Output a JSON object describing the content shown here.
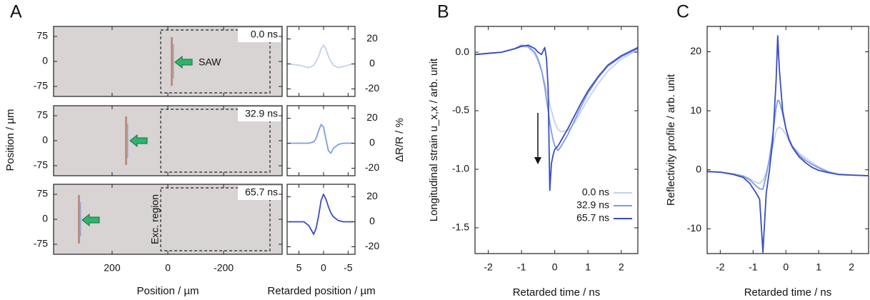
{
  "chart_data": [
    {
      "type": "image",
      "panel_label": "A",
      "xlabel": "Position / µm",
      "ylabel": "Position / µm",
      "xlim": [
        410,
        -410
      ],
      "ylim": [
        -105,
        105
      ],
      "xticks": [
        200,
        0,
        -200
      ],
      "yticks": [
        75,
        0,
        -75
      ],
      "times": [
        "0.0 ns",
        "32.9 ns",
        "65.7 ns"
      ],
      "annotations": [
        "SAW",
        "Exc. region"
      ]
    },
    {
      "type": "line",
      "xlabel": "Retarded position / µm",
      "ylabel": "ΔR/R / %",
      "xlim": [
        7.4,
        -6.4
      ],
      "ylim": [
        -26,
        30
      ],
      "xticks": [
        5,
        0,
        -5
      ],
      "yticks": [
        20,
        0,
        -20
      ],
      "x": [
        7,
        6,
        5,
        4,
        3,
        2,
        1.5,
        1,
        0.5,
        0,
        -0.5,
        -1,
        -1.5,
        -2,
        -3,
        -4,
        -5,
        -6
      ],
      "series": [
        {
          "color": "#c3d0ee",
          "values": [
            0,
            -0.5,
            -1,
            -2,
            -3,
            -1,
            2,
            6,
            12,
            15,
            12,
            6,
            2,
            -1,
            -3,
            -2,
            -1,
            0
          ]
        },
        {
          "color": "#7f9ce2",
          "values": [
            0,
            0,
            0,
            0,
            0,
            1,
            4,
            10,
            15,
            13,
            3,
            -6,
            -8,
            -4,
            -1,
            0,
            0,
            0
          ]
        },
        {
          "color": "#3a4cc0",
          "values": [
            0,
            0,
            0,
            0,
            -3,
            -10,
            -5,
            5,
            17,
            22,
            18,
            12,
            7,
            4,
            1,
            0,
            0,
            0
          ]
        }
      ]
    },
    {
      "type": "line",
      "panel_label": "B",
      "xlabel": "Retarded time / ns",
      "ylabel": "Longitudinal strain u_x,x / arb. unit",
      "xlim": [
        -2.4,
        2.5
      ],
      "ylim": [
        -1.72,
        0.22
      ],
      "xticks": [
        -2,
        -1,
        0,
        1,
        2
      ],
      "yticks": [
        {
          "value": 0,
          "label": "0.0"
        },
        -0.5,
        {
          "value": -1,
          "label": "-1.0"
        },
        -1.5
      ],
      "legend": "lower right",
      "x": [
        -2.4,
        -2.0,
        -1.6,
        -1.2,
        -1.0,
        -0.8,
        -0.6,
        -0.5,
        -0.4,
        -0.3,
        -0.25,
        -0.2,
        -0.15,
        -0.1,
        -0.05,
        0,
        0.1,
        0.2,
        0.4,
        0.6,
        0.8,
        1.0,
        1.3,
        1.6,
        2.0,
        2.5
      ],
      "series": [
        {
          "name": "0.0 ns",
          "color": "#c3d0ee",
          "values": [
            -0.02,
            -0.01,
            0.0,
            0.03,
            0.05,
            0.04,
            -0.02,
            -0.08,
            -0.16,
            -0.26,
            -0.32,
            -0.38,
            -0.44,
            -0.5,
            -0.55,
            -0.6,
            -0.66,
            -0.68,
            -0.67,
            -0.6,
            -0.5,
            -0.4,
            -0.27,
            -0.16,
            -0.06,
            0.02
          ]
        },
        {
          "name": "32.9 ns",
          "color": "#7f9ce2",
          "values": [
            -0.02,
            -0.01,
            0.0,
            0.03,
            0.06,
            0.05,
            0.0,
            -0.06,
            -0.15,
            -0.3,
            -0.4,
            -0.5,
            -0.6,
            -0.68,
            -0.75,
            -0.8,
            -0.84,
            -0.8,
            -0.7,
            -0.58,
            -0.46,
            -0.35,
            -0.22,
            -0.12,
            -0.04,
            0.03
          ]
        },
        {
          "name": "65.7 ns",
          "color": "#3a4cc0",
          "values": [
            -0.02,
            -0.01,
            0.0,
            0.03,
            0.05,
            0.06,
            0.03,
            0.0,
            -0.02,
            0.04,
            -0.05,
            -0.3,
            -1.18,
            -0.95,
            -0.88,
            -0.83,
            -0.8,
            -0.75,
            -0.65,
            -0.54,
            -0.43,
            -0.33,
            -0.21,
            -0.11,
            -0.03,
            0.04
          ]
        }
      ]
    },
    {
      "type": "line",
      "panel_label": "C",
      "xlabel": "Retarded time / ns",
      "ylabel": "Reflectivity profile / arb. unit",
      "xlim": [
        -2.4,
        2.52
      ],
      "ylim": [
        -14.2,
        24.3
      ],
      "xticks": [
        -2,
        -1,
        0,
        1,
        2
      ],
      "yticks": [
        20,
        10,
        0,
        -10
      ],
      "x": [
        -2.4,
        -2.0,
        -1.6,
        -1.3,
        -1.1,
        -0.9,
        -0.8,
        -0.7,
        -0.6,
        -0.5,
        -0.4,
        -0.3,
        -0.25,
        -0.2,
        -0.1,
        0,
        0.1,
        0.2,
        0.4,
        0.6,
        0.8,
        1.0,
        1.3,
        1.6,
        2.0,
        2.5
      ],
      "series": [
        {
          "color": "#c3d0ee",
          "values": [
            -0.3,
            -0.4,
            -0.7,
            -1.0,
            -1.5,
            -2.2,
            -2.3,
            -1.8,
            -0.5,
            1.5,
            4,
            6.5,
            7.1,
            7.2,
            6.8,
            6,
            5,
            4,
            2.8,
            2,
            1.2,
            0.5,
            -0.3,
            -0.7,
            -0.9,
            -1.0
          ]
        },
        {
          "color": "#7f9ce2",
          "values": [
            -0.3,
            -0.4,
            -0.7,
            -1.1,
            -1.7,
            -2.8,
            -3.2,
            -3.3,
            -1,
            2,
            6,
            10.5,
            11.8,
            11.6,
            9.5,
            7,
            5.2,
            4,
            2.5,
            1.6,
            0.9,
            0.3,
            -0.4,
            -0.8,
            -0.9,
            -1.0
          ]
        },
        {
          "color": "#3a4cc0",
          "values": [
            -0.3,
            -0.4,
            -0.8,
            -1.3,
            -2.3,
            -4,
            -5,
            -14,
            -4,
            0,
            5,
            15,
            22.7,
            17,
            10,
            7,
            5,
            3.8,
            2.2,
            1.2,
            0.4,
            -0.1,
            -0.5,
            -0.8,
            -0.9,
            -1.0
          ]
        }
      ]
    }
  ]
}
